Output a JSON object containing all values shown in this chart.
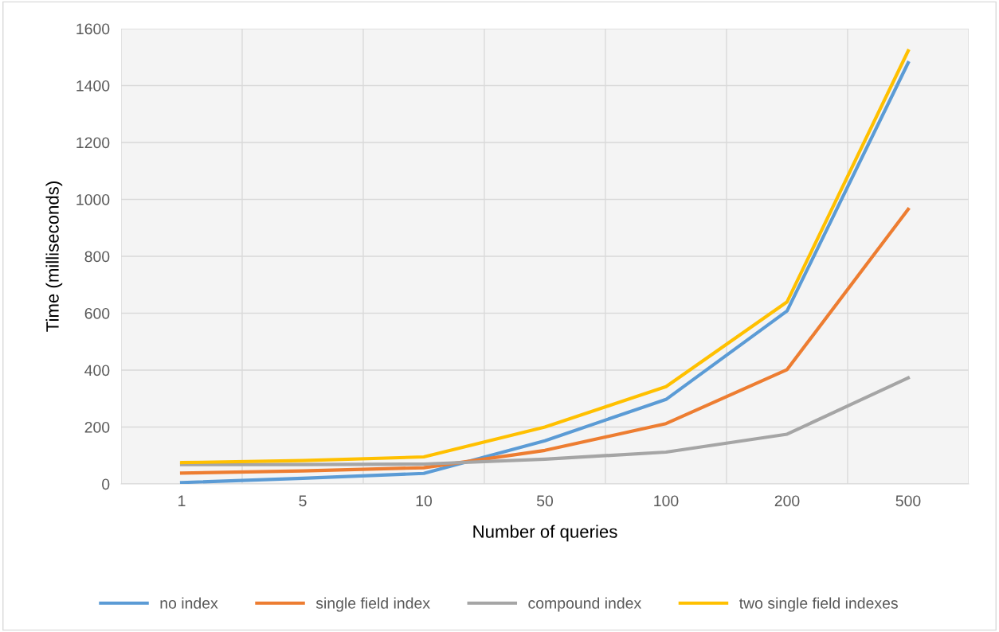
{
  "chart_data": {
    "type": "line",
    "xlabel": "Number of queries",
    "ylabel": "Time (milliseconds)",
    "categories": [
      "1",
      "5",
      "10",
      "50",
      "100",
      "200",
      "500"
    ],
    "series": [
      {
        "name": "no index",
        "color": "#5b9bd5",
        "values": [
          5,
          20,
          37,
          152,
          297,
          608,
          1480
        ]
      },
      {
        "name": "single field index",
        "color": "#ed7d31",
        "values": [
          38,
          46,
          57,
          118,
          212,
          402,
          965
        ]
      },
      {
        "name": "compound index",
        "color": "#a5a5a5",
        "values": [
          68,
          68,
          70,
          87,
          112,
          175,
          373
        ]
      },
      {
        "name": "two single field indexes",
        "color": "#ffc000",
        "values": [
          75,
          82,
          95,
          200,
          342,
          640,
          1522
        ]
      }
    ],
    "ylim": [
      0,
      1600
    ],
    "yticks": [
      0,
      200,
      400,
      600,
      800,
      1000,
      1200,
      1400,
      1600
    ],
    "grid": true,
    "legend": "bottom",
    "marker": "none",
    "line_style": "solid"
  }
}
